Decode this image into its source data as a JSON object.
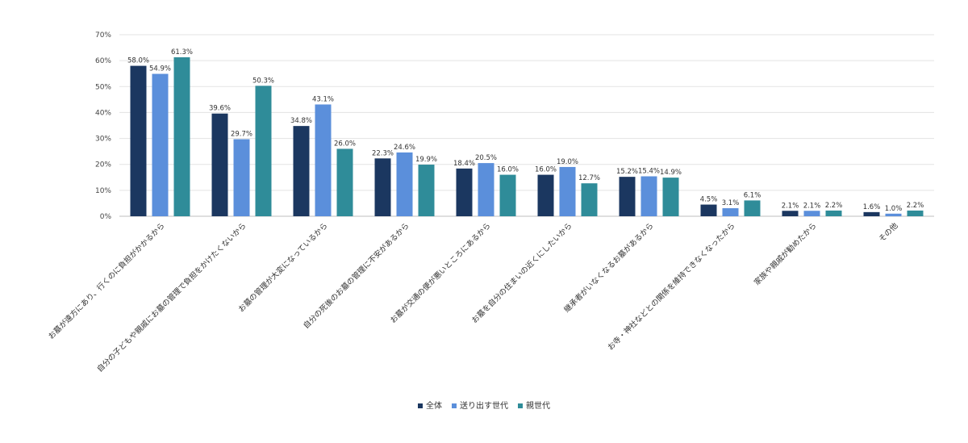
{
  "chart_data": {
    "type": "bar",
    "title": "",
    "xlabel": "",
    "ylabel": "",
    "ylim": [
      0,
      70
    ],
    "yticks": [
      "0%",
      "10%",
      "20%",
      "30%",
      "40%",
      "50%",
      "60%",
      "70%"
    ],
    "ytick_values": [
      0,
      10,
      20,
      30,
      40,
      50,
      60,
      70
    ],
    "grid": true,
    "legend_position": "bottom",
    "categories": [
      "お墓が遠方にあり、行くのに負担がかかるから",
      "自分の子どもや親戚にお墓の管理で負担をかけたくないから",
      "お墓の管理が大変になっているから",
      "自分の死後のお墓の管理に不安があるから",
      "お墓が交通の便が悪いところにあるから",
      "お墓を自分の住まいの近くにしたいから",
      "継承者がいなくなるお墓があるから",
      "お寺・神社などとの関係を維持できなくなったから",
      "家族や親戚が勧めたから",
      "その他"
    ],
    "series": [
      {
        "name": "全体",
        "color": "#1b3760",
        "values": [
          58.0,
          39.6,
          34.8,
          22.3,
          18.4,
          16.0,
          15.2,
          4.5,
          2.1,
          1.6
        ],
        "labels": [
          "58.0%",
          "39.6%",
          "34.8%",
          "22.3%",
          "18.4%",
          "16.0%",
          "15.2%",
          "4.5%",
          "2.1%",
          "1.6%"
        ]
      },
      {
        "name": "送り出す世代",
        "color": "#5b8fdb",
        "values": [
          54.9,
          29.7,
          43.1,
          24.6,
          20.5,
          19.0,
          15.4,
          3.1,
          2.1,
          1.0
        ],
        "labels": [
          "54.9%",
          "29.7%",
          "43.1%",
          "24.6%",
          "20.5%",
          "19.0%",
          "15.4%",
          "3.1%",
          "2.1%",
          "1.0%"
        ]
      },
      {
        "name": "親世代",
        "color": "#2f8c99",
        "values": [
          61.3,
          50.3,
          26.0,
          19.9,
          16.0,
          12.7,
          14.9,
          6.1,
          2.2,
          2.2
        ],
        "labels": [
          "61.3%",
          "50.3%",
          "26.0%",
          "19.9%",
          "16.0%",
          "12.7%",
          "14.9%",
          "6.1%",
          "2.2%",
          "2.2%"
        ]
      }
    ]
  }
}
